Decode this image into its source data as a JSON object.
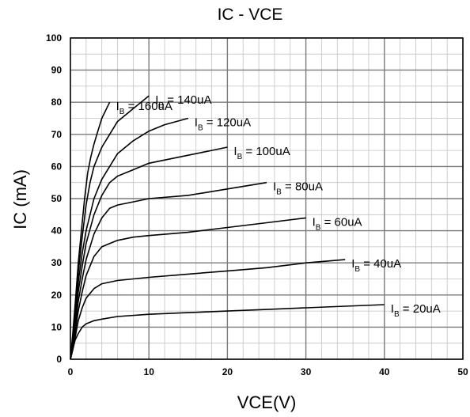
{
  "chart_data": {
    "type": "line",
    "title": "IC - VCE",
    "xlabel": "VCE(V)",
    "ylabel": "IC (mA)",
    "xlim": [
      0,
      50
    ],
    "ylim": [
      0,
      100
    ],
    "x_ticks": [
      "0",
      "10",
      "20",
      "30",
      "40",
      "50"
    ],
    "y_ticks": [
      "0",
      "10",
      "20",
      "30",
      "40",
      "50",
      "60",
      "70",
      "80",
      "90",
      "100"
    ],
    "grid": true,
    "minor_grid": true,
    "series": [
      {
        "name": "IB = 160uA",
        "label_prefix": "I",
        "label_sub": "B",
        "label_suffix": " = 160uA",
        "x": [
          0,
          0.3,
          0.7,
          1.0,
          1.4,
          1.8,
          2.2,
          2.6,
          3.0,
          3.5,
          4.0,
          5.0
        ],
        "y": [
          0,
          8,
          20,
          30,
          40,
          50,
          58,
          63,
          67,
          71,
          75,
          80
        ]
      },
      {
        "name": "IB = 140uA",
        "label_prefix": "I",
        "label_sub": "B",
        "label_suffix": " = 140uA",
        "x": [
          0,
          0.3,
          0.7,
          1.0,
          1.5,
          2.0,
          2.5,
          3.0,
          4.0,
          5.0,
          6.0,
          8.0,
          10.0
        ],
        "y": [
          0,
          7,
          18,
          27,
          38,
          48,
          55,
          60,
          66,
          70,
          74,
          78,
          82
        ]
      },
      {
        "name": "IB = 120uA",
        "label_prefix": "I",
        "label_sub": "B",
        "label_suffix": " = 120uA",
        "x": [
          0,
          0.3,
          0.7,
          1.0,
          1.5,
          2.0,
          3.0,
          4.0,
          5.0,
          6.0,
          8.0,
          10.0,
          12.0,
          15.0
        ],
        "y": [
          0,
          6,
          16,
          24,
          33,
          40,
          50,
          56,
          60,
          64,
          68,
          71,
          73,
          75
        ]
      },
      {
        "name": "IB = 100uA",
        "label_prefix": "I",
        "label_sub": "B",
        "label_suffix": " = 100uA",
        "x": [
          0,
          0.3,
          0.7,
          1.0,
          1.5,
          2.0,
          3.0,
          4.0,
          5.0,
          6.0,
          8.0,
          10.0,
          14.0,
          18.0,
          20.0
        ],
        "y": [
          0,
          5,
          14,
          21,
          29,
          36,
          45,
          51,
          55,
          57,
          59,
          61,
          63,
          65,
          66
        ]
      },
      {
        "name": "IB = 80uA",
        "label_prefix": "I",
        "label_sub": "B",
        "label_suffix": " = 80uA",
        "x": [
          0,
          0.3,
          0.7,
          1.0,
          1.5,
          2.0,
          3.0,
          4.0,
          5.0,
          6.0,
          8.0,
          10.0,
          15.0,
          20.0,
          25.0
        ],
        "y": [
          0,
          4,
          12,
          18,
          25,
          31,
          39,
          44,
          47,
          48,
          49,
          50,
          51,
          53,
          55
        ]
      },
      {
        "name": "IB = 60uA",
        "label_prefix": "I",
        "label_sub": "B",
        "label_suffix": " = 60uA",
        "x": [
          0,
          0.3,
          0.7,
          1.0,
          1.5,
          2.0,
          3.0,
          4.0,
          5.0,
          6.0,
          8.0,
          10.0,
          15.0,
          20.0,
          25.0,
          30.0
        ],
        "y": [
          0,
          4,
          10,
          15,
          21,
          26,
          32,
          35,
          36,
          37,
          38,
          38.5,
          39.5,
          41,
          42.5,
          44
        ]
      },
      {
        "name": "IB = 40uA",
        "label_prefix": "I",
        "label_sub": "B",
        "label_suffix": " = 40uA",
        "x": [
          0,
          0.3,
          0.7,
          1.0,
          1.5,
          2.0,
          3.0,
          4.0,
          6.0,
          8.0,
          10.0,
          15.0,
          20.0,
          25.0,
          30.0,
          35.0
        ],
        "y": [
          0,
          3,
          8,
          12,
          16,
          19,
          22,
          23.5,
          24.5,
          25,
          25.5,
          26.5,
          27.5,
          28.5,
          30,
          31
        ]
      },
      {
        "name": "IB = 20uA",
        "label_prefix": "I",
        "label_sub": "B",
        "label_suffix": " = 20uA",
        "x": [
          0,
          0.3,
          0.6,
          1.0,
          1.5,
          2.0,
          3.0,
          4.0,
          6.0,
          10.0,
          15.0,
          20.0,
          25.0,
          30.0,
          35.0,
          40.0
        ],
        "y": [
          0,
          3,
          6,
          8,
          10,
          11,
          12,
          12.5,
          13.3,
          14,
          14.5,
          15,
          15.5,
          16,
          16.5,
          17
        ]
      }
    ]
  }
}
